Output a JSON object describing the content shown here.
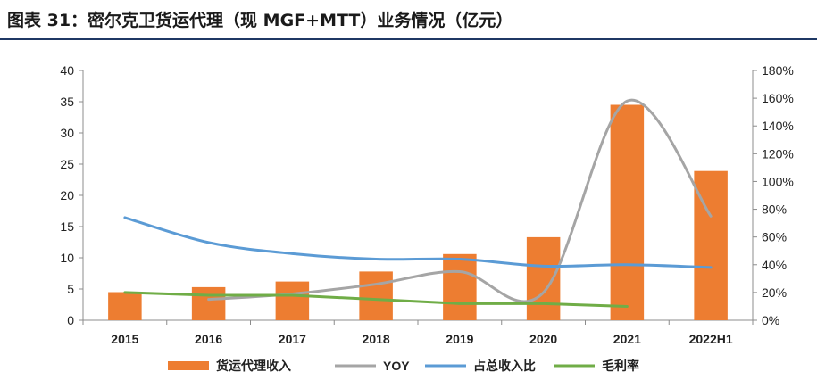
{
  "chart_data": {
    "type": "bar",
    "title": "图表 31：密尔克卫货运代理（现 MGF+MTT）业务情况（亿元）",
    "categories": [
      "2015",
      "2016",
      "2017",
      "2018",
      "2019",
      "2020",
      "2021",
      "2022H1"
    ],
    "y_left": {
      "range": [
        0,
        40
      ],
      "ticks": [
        "0",
        "5",
        "10",
        "15",
        "20",
        "25",
        "30",
        "35",
        "40"
      ]
    },
    "y_right": {
      "range": [
        0,
        180
      ],
      "ticks": [
        "0%",
        "20%",
        "40%",
        "60%",
        "80%",
        "100%",
        "120%",
        "140%",
        "160%",
        "180%"
      ]
    },
    "grid": false,
    "legend_position": "bottom",
    "series": [
      {
        "name": "货运代理收入",
        "type": "bar",
        "axis": "left",
        "color": "#ed7d31",
        "values": [
          4.5,
          5.3,
          6.2,
          7.8,
          10.6,
          13.3,
          34.5,
          23.9
        ]
      },
      {
        "name": "YOY",
        "type": "line",
        "axis": "right",
        "smooth": true,
        "color": "#a5a5a5",
        "values": [
          null,
          15,
          19,
          26,
          35,
          20,
          158,
          75
        ]
      },
      {
        "name": "占总收入比",
        "type": "line",
        "axis": "right",
        "smooth": true,
        "color": "#5b9bd5",
        "values": [
          74,
          56,
          48,
          44,
          44,
          39,
          40,
          38
        ]
      },
      {
        "name": "毛利率",
        "type": "line",
        "axis": "right",
        "smooth": false,
        "color": "#70ad47",
        "values": [
          20,
          18,
          18,
          15,
          12,
          12,
          10,
          null
        ]
      }
    ]
  }
}
